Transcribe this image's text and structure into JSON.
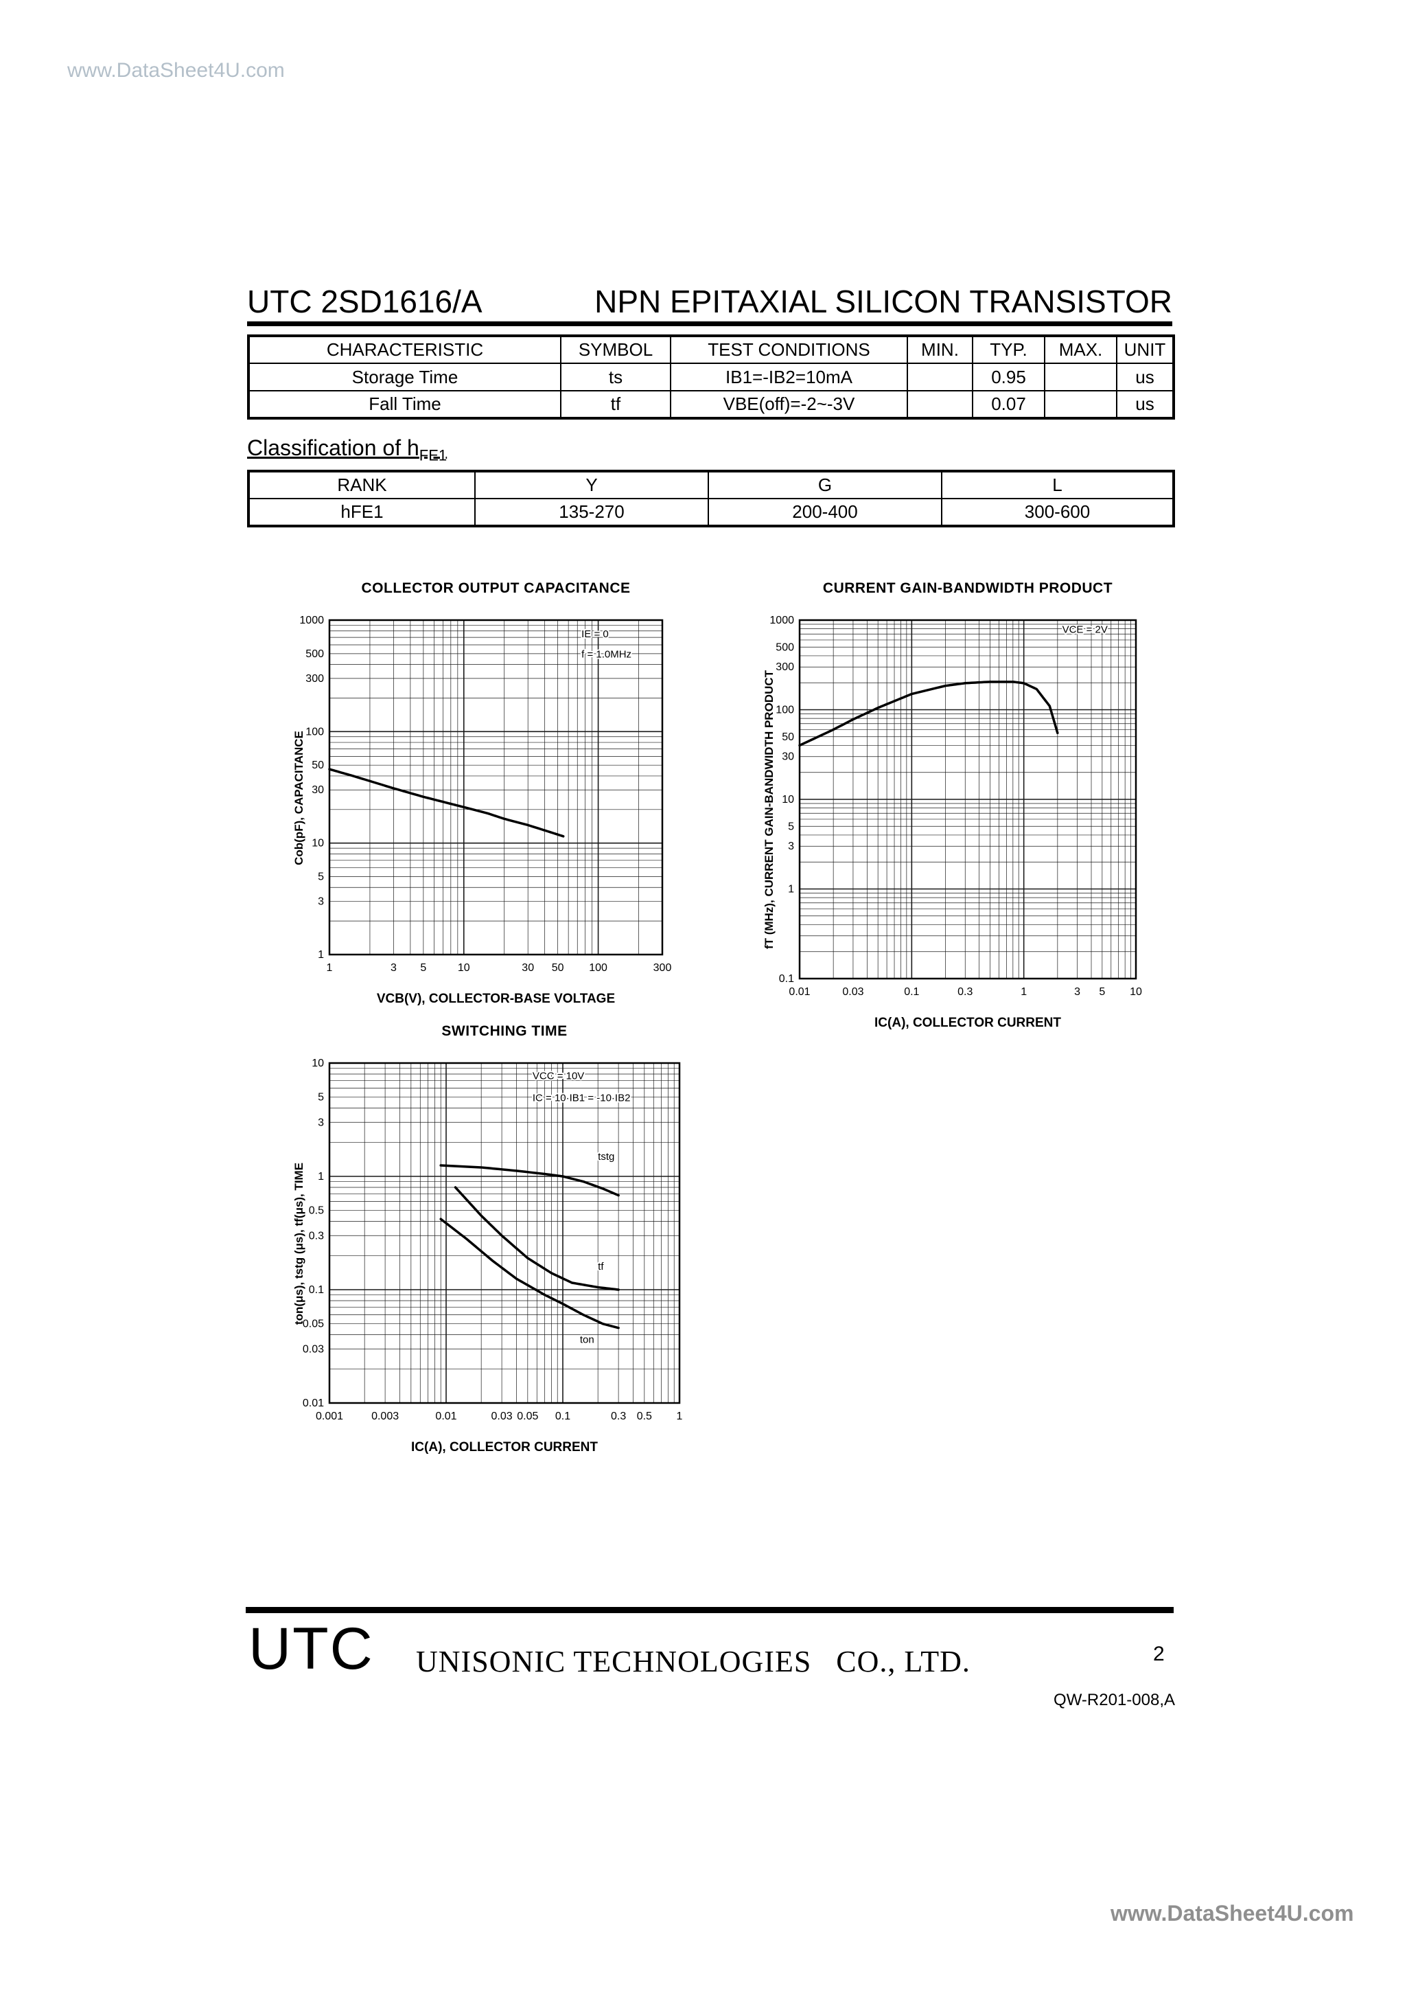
{
  "page": {
    "watermark_top": "www.DataSheet4U.com",
    "watermark_bottom": "www.DataSheet4U.com"
  },
  "header": {
    "part_number": "UTC 2SD1616/A",
    "title": "NPN EPITAXIAL SILICON TRANSISTOR"
  },
  "characteristics_table": {
    "headers": [
      "CHARACTERISTIC",
      "SYMBOL",
      "TEST CONDITIONS",
      "MIN.",
      "TYP.",
      "MAX.",
      "UNIT"
    ],
    "rows": [
      [
        "Storage Time",
        "ts",
        "IB1=-IB2=10mA",
        "",
        "0.95",
        "",
        "us"
      ],
      [
        "Fall Time",
        "tf",
        "VBE(off)=-2~-3V",
        "",
        "0.07",
        "",
        "us"
      ]
    ]
  },
  "classification": {
    "heading_main": "Classification of h",
    "heading_sub": "FE1",
    "headers": [
      "RANK",
      "Y",
      "G",
      "L"
    ],
    "rows": [
      [
        "hFE1",
        "135-270",
        "200-400",
        "300-600"
      ]
    ]
  },
  "footer": {
    "logo": "UTC",
    "company": "UNISONIC TECHNOLOGIES   CO., LTD.",
    "page_number": "2",
    "doc_number": "QW-R201-008,A"
  },
  "chart_data": [
    {
      "name": "collector-output-capacitance",
      "type": "line",
      "title": "COLLECTOR OUTPUT CAPACITANCE",
      "xlabel": "VCB(V), COLLECTOR-BASE VOLTAGE",
      "ylabel": "Cob(pF), CAPACITANCE",
      "xlim": [
        1,
        300
      ],
      "ylim": [
        1,
        1000
      ],
      "grid": true,
      "legend": false,
      "xticks": [
        [
          1,
          "1"
        ],
        [
          3,
          "3"
        ],
        [
          5,
          "5"
        ],
        [
          10,
          "10"
        ],
        [
          30,
          "30"
        ],
        [
          50,
          "50"
        ],
        [
          100,
          "100"
        ],
        [
          300,
          "300"
        ]
      ],
      "yticks": [
        [
          1000,
          "1000"
        ],
        [
          500,
          "500"
        ],
        [
          300,
          "300"
        ],
        [
          100,
          "100"
        ],
        [
          50,
          "50"
        ],
        [
          30,
          "30"
        ],
        [
          10,
          "10"
        ],
        [
          5,
          "5"
        ],
        [
          3,
          "3"
        ],
        [
          1,
          "1"
        ]
      ],
      "annotations": [
        {
          "text": "IE = 0",
          "x": 75,
          "y": 700
        },
        {
          "text": "f = 1.0MHz",
          "x": 75,
          "y": 460
        }
      ],
      "series": [
        {
          "name": "Cob",
          "points": [
            [
              1,
              46
            ],
            [
              1.5,
              40
            ],
            [
              2,
              36
            ],
            [
              3,
              31
            ],
            [
              5,
              26
            ],
            [
              8,
              22.5
            ],
            [
              10,
              21
            ],
            [
              15,
              18.5
            ],
            [
              20,
              16.5
            ],
            [
              30,
              14.5
            ],
            [
              40,
              13
            ],
            [
              55,
              11.5
            ]
          ],
          "label": null
        }
      ]
    },
    {
      "name": "current-gain-bandwidth-product",
      "type": "line",
      "title": "CURRENT GAIN-BANDWIDTH PRODUCT",
      "xlabel": "IC(A), COLLECTOR CURRENT",
      "ylabel": "fT (MHz), CURRENT GAIN-BANDWIDTH PRODUCT",
      "xlim": [
        0.01,
        10
      ],
      "ylim": [
        0.1,
        1000
      ],
      "grid": true,
      "legend": false,
      "xticks": [
        [
          0.01,
          "0.01"
        ],
        [
          0.03,
          "0.03"
        ],
        [
          0.1,
          "0.1"
        ],
        [
          0.3,
          "0.3"
        ],
        [
          1,
          "1"
        ],
        [
          3,
          "3"
        ],
        [
          5,
          "5"
        ],
        [
          10,
          "10"
        ]
      ],
      "yticks": [
        [
          1000,
          "1000"
        ],
        [
          500,
          "500"
        ],
        [
          300,
          "300"
        ],
        [
          100,
          "100"
        ],
        [
          50,
          "50"
        ],
        [
          30,
          "30"
        ],
        [
          10,
          "10"
        ],
        [
          5,
          "5"
        ],
        [
          3,
          "3"
        ],
        [
          1,
          "1"
        ],
        [
          0.1,
          "0.1"
        ]
      ],
      "annotations": [
        {
          "text": "VCE = 2V",
          "x": 2.2,
          "y": 720
        }
      ],
      "series": [
        {
          "name": "fT",
          "points": [
            [
              0.01,
              40
            ],
            [
              0.02,
              60
            ],
            [
              0.03,
              78
            ],
            [
              0.05,
              105
            ],
            [
              0.1,
              150
            ],
            [
              0.2,
              185
            ],
            [
              0.3,
              198
            ],
            [
              0.5,
              205
            ],
            [
              0.8,
              205
            ],
            [
              1,
              198
            ],
            [
              1.3,
              170
            ],
            [
              1.7,
              110
            ],
            [
              2,
              55
            ]
          ],
          "label": null
        }
      ]
    },
    {
      "name": "switching-time",
      "type": "line",
      "title": "SWITCHING TIME",
      "xlabel": "IC(A), COLLECTOR CURRENT",
      "ylabel": "ton(μs), tstg (μs), tf(μs), TIME",
      "xlim": [
        0.001,
        1
      ],
      "ylim": [
        0.01,
        10
      ],
      "grid": true,
      "legend": false,
      "xticks": [
        [
          0.001,
          "0.001"
        ],
        [
          0.003,
          "0.003"
        ],
        [
          0.01,
          "0.01"
        ],
        [
          0.03,
          "0.03"
        ],
        [
          0.05,
          "0.05"
        ],
        [
          0.1,
          "0.1"
        ],
        [
          0.3,
          "0.3"
        ],
        [
          0.5,
          "0.5"
        ],
        [
          1,
          "1"
        ]
      ],
      "yticks": [
        [
          10,
          "10"
        ],
        [
          5,
          "5"
        ],
        [
          3,
          "3"
        ],
        [
          1,
          "1"
        ],
        [
          0.5,
          "0.5"
        ],
        [
          0.3,
          "0.3"
        ],
        [
          0.1,
          "0.1"
        ],
        [
          0.05,
          "0.05"
        ],
        [
          0.03,
          "0.03"
        ],
        [
          0.01,
          "0.01"
        ]
      ],
      "annotations": [
        {
          "text": "VCC = 10V",
          "x": 0.055,
          "y": 7.2
        },
        {
          "text": "IC = 10·IB1 = -10·IB2",
          "x": 0.055,
          "y": 4.6
        }
      ],
      "series": [
        {
          "name": "tstg",
          "points": [
            [
              0.009,
              1.25
            ],
            [
              0.02,
              1.2
            ],
            [
              0.04,
              1.12
            ],
            [
              0.07,
              1.05
            ],
            [
              0.1,
              1.0
            ],
            [
              0.15,
              0.9
            ],
            [
              0.22,
              0.78
            ],
            [
              0.3,
              0.68
            ]
          ],
          "label": {
            "text": "tstg",
            "x": 0.2,
            "y": 1.4
          }
        },
        {
          "name": "tf",
          "points": [
            [
              0.012,
              0.8
            ],
            [
              0.02,
              0.45
            ],
            [
              0.03,
              0.3
            ],
            [
              0.05,
              0.19
            ],
            [
              0.08,
              0.14
            ],
            [
              0.12,
              0.115
            ],
            [
              0.2,
              0.105
            ],
            [
              0.3,
              0.1
            ]
          ],
          "label": {
            "text": "tf",
            "x": 0.2,
            "y": 0.15
          }
        },
        {
          "name": "ton",
          "points": [
            [
              0.009,
              0.42
            ],
            [
              0.015,
              0.28
            ],
            [
              0.025,
              0.18
            ],
            [
              0.04,
              0.125
            ],
            [
              0.07,
              0.09
            ],
            [
              0.1,
              0.075
            ],
            [
              0.15,
              0.06
            ],
            [
              0.22,
              0.05
            ],
            [
              0.3,
              0.046
            ]
          ],
          "label": {
            "text": "ton",
            "x": 0.14,
            "y": 0.034
          }
        }
      ]
    }
  ]
}
